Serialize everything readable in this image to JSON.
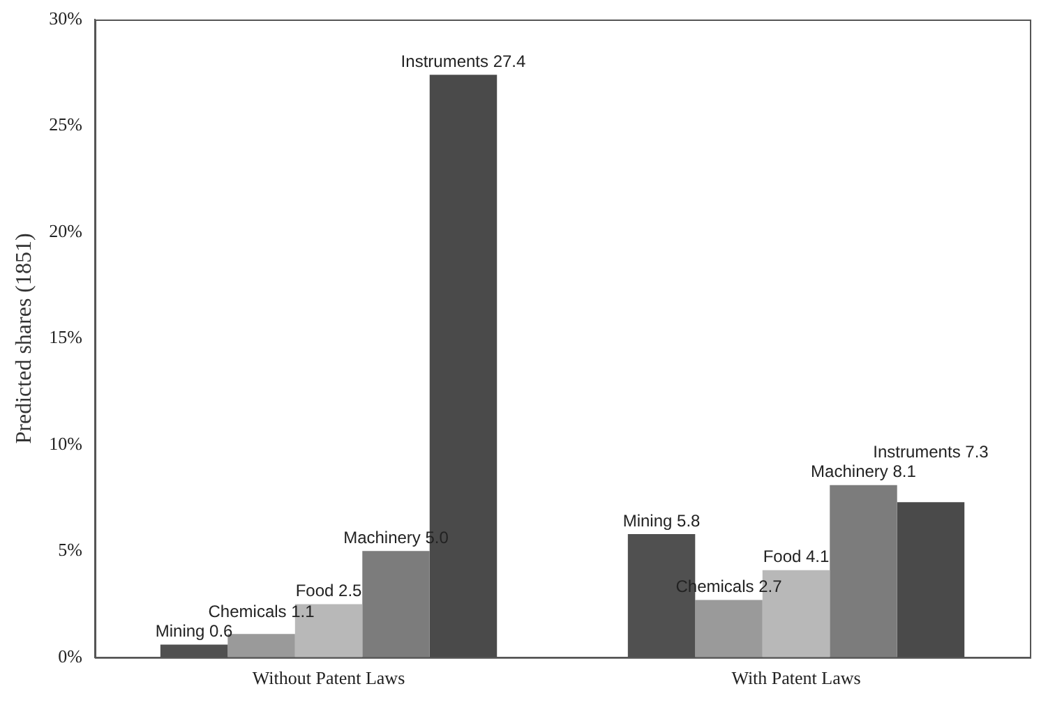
{
  "chart_data": {
    "type": "bar",
    "ylabel": "Predicted shares (1851)",
    "categories": [
      "Without Patent Laws",
      "With Patent Laws"
    ],
    "series": [
      {
        "name": "Mining",
        "color": "#505050",
        "values": [
          0.6,
          5.8
        ],
        "value_labels": [
          "0.6",
          "5.8"
        ]
      },
      {
        "name": "Chemicals",
        "color": "#9a9a9a",
        "values": [
          1.1,
          2.7
        ],
        "value_labels": [
          "1.1",
          "2.7"
        ]
      },
      {
        "name": "Food",
        "color": "#b8b8b8",
        "values": [
          2.5,
          4.1
        ],
        "value_labels": [
          "2.5",
          "4.1"
        ]
      },
      {
        "name": "Machinery",
        "color": "#7c7c7c",
        "values": [
          5.0,
          8.1
        ],
        "value_labels": [
          "5.0",
          "8.1"
        ]
      },
      {
        "name": "Instruments",
        "color": "#4a4a4a",
        "values": [
          27.4,
          7.3
        ],
        "value_labels": [
          "27.4",
          "7.3"
        ]
      }
    ],
    "ylim": [
      0,
      30
    ],
    "yticks": [
      {
        "value": 0,
        "label": "0%"
      },
      {
        "value": 5,
        "label": "5%"
      },
      {
        "value": 10,
        "label": "10%"
      },
      {
        "value": 15,
        "label": "15%"
      },
      {
        "value": 20,
        "label": "20%"
      },
      {
        "value": 25,
        "label": "25%"
      },
      {
        "value": 30,
        "label": "30%"
      }
    ],
    "grid": false,
    "legend": false
  }
}
